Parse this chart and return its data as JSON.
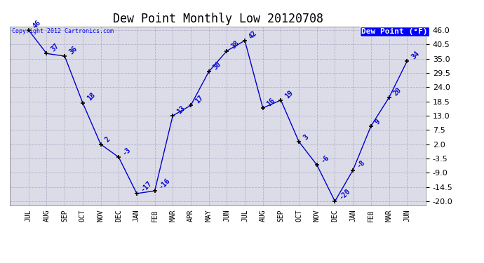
{
  "title": "Dew Point Monthly Low 20120708",
  "copyright": "Copyright 2012 Cartronics.com",
  "legend_label": "Dew Point (°F)",
  "months": [
    "JUL",
    "AUG",
    "SEP",
    "OCT",
    "NOV",
    "DEC",
    "JAN",
    "FEB",
    "MAR",
    "APR",
    "MAY",
    "JUN",
    "JUL",
    "AUG",
    "SEP",
    "OCT",
    "NOV",
    "DEC",
    "JAN",
    "FEB",
    "MAR",
    "JUN"
  ],
  "values": [
    46,
    37,
    36,
    18,
    2,
    -3,
    -17,
    -16,
    13,
    17,
    30,
    38,
    42,
    16,
    19,
    3,
    -6,
    -20,
    -8,
    9,
    20,
    34
  ],
  "ylim_min": -20,
  "ylim_max": 46,
  "yticks": [
    46.0,
    40.5,
    35.0,
    29.5,
    24.0,
    18.5,
    13.0,
    7.5,
    2.0,
    -3.5,
    -9.0,
    -14.5,
    -20.0
  ],
  "line_color": "#0000cc",
  "marker_color": "#000000",
  "bg_color": "#dcdce8",
  "grid_color": "#b0b0c8",
  "title_fontsize": 12,
  "xlabel_fontsize": 7,
  "ylabel_fontsize": 8,
  "annot_fontsize": 7,
  "copyright_fontsize": 6,
  "legend_fontsize": 8
}
